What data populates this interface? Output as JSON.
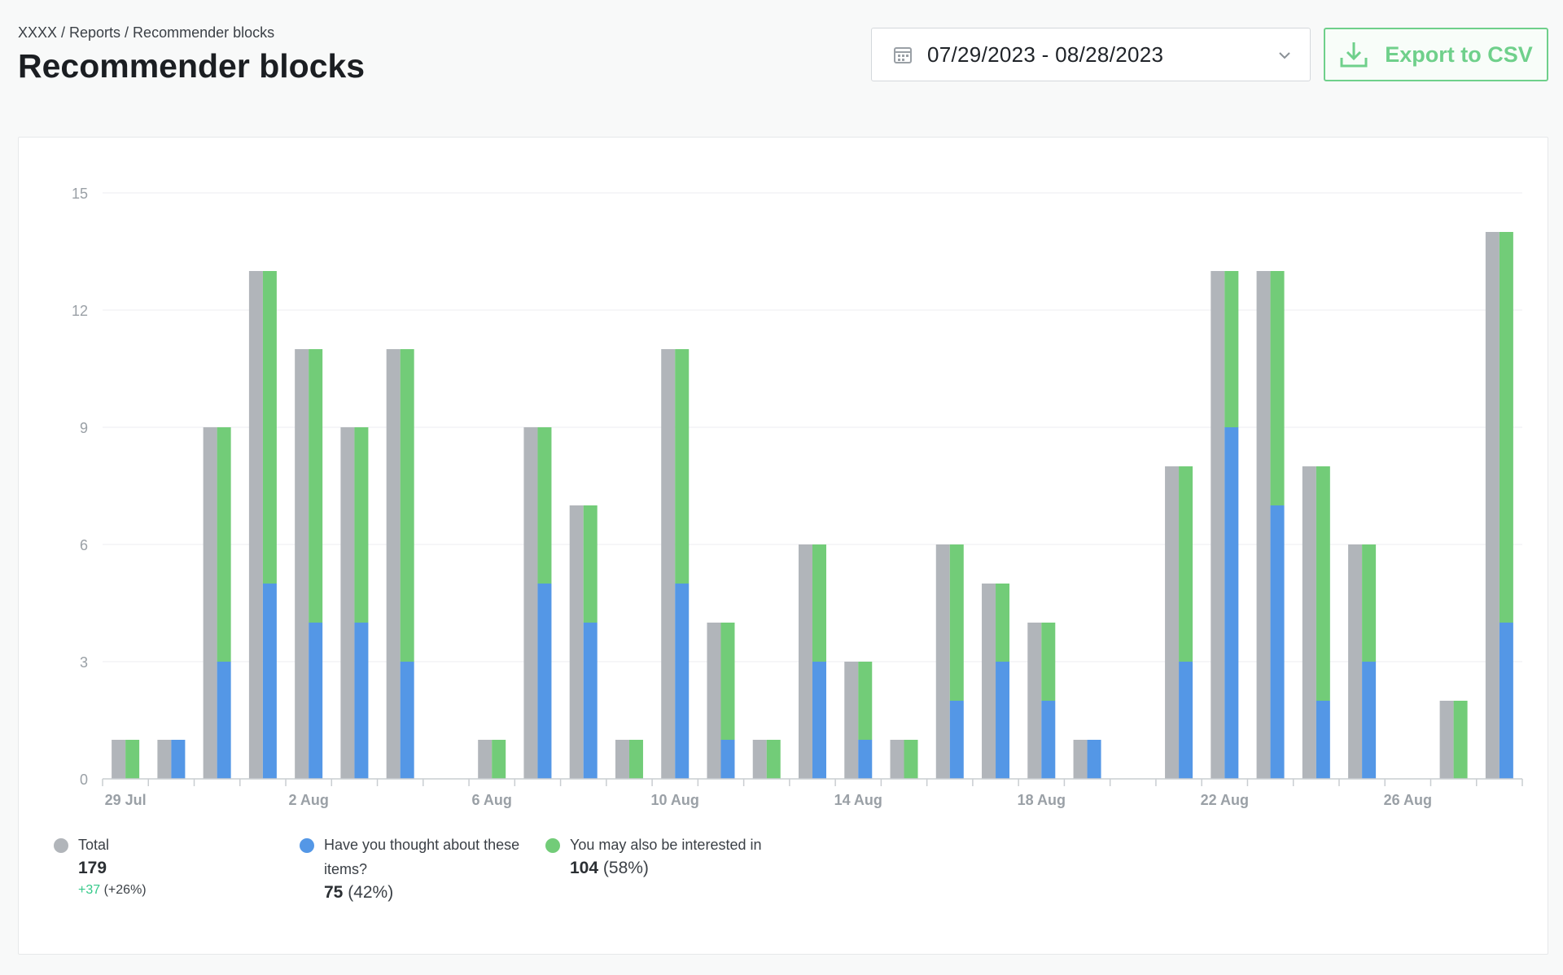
{
  "breadcrumb": "XXXX / Reports / Recommender blocks",
  "page_title": "Recommender blocks",
  "date_range": "07/29/2023 - 08/28/2023",
  "export_label": "Export to CSV",
  "icons": {
    "calendar": "calendar-icon",
    "chevron": "chevron-down-icon",
    "download": "download-icon"
  },
  "colors": {
    "total": "#b1b5ba",
    "have_you_thought": "#5497e6",
    "you_may_also": "#72cc78",
    "accent": "#6fd08b",
    "positive": "#35c98a"
  },
  "legend": {
    "total": {
      "label": "Total",
      "value": "179",
      "change": "+37",
      "change_pct": "(+26%)"
    },
    "have_you_thought": {
      "label_line1": "Have you thought about these",
      "label_line2": "items?",
      "value": "75",
      "pct": "(42%)"
    },
    "you_may_also": {
      "label": "You may also be interested in",
      "value": "104",
      "pct": "(58%)"
    }
  },
  "chart_data": {
    "type": "bar",
    "title": "",
    "xlabel": "",
    "ylabel": "",
    "ylim": [
      0,
      15
    ],
    "yticks": [
      "0",
      "3",
      "6",
      "9",
      "12",
      "15"
    ],
    "grid": true,
    "legend_position": "bottom-left",
    "categories": [
      "29 Jul",
      "30 Jul",
      "31 Jul",
      "1 Aug",
      "2 Aug",
      "3 Aug",
      "4 Aug",
      "5 Aug",
      "6 Aug",
      "7 Aug",
      "8 Aug",
      "9 Aug",
      "10 Aug",
      "11 Aug",
      "12 Aug",
      "13 Aug",
      "14 Aug",
      "15 Aug",
      "16 Aug",
      "17 Aug",
      "18 Aug",
      "19 Aug",
      "20 Aug",
      "21 Aug",
      "22 Aug",
      "23 Aug",
      "24 Aug",
      "25 Aug",
      "26 Aug",
      "27 Aug",
      "28 Aug"
    ],
    "tick_labels": [
      "29 Jul",
      "2 Aug",
      "6 Aug",
      "10 Aug",
      "14 Aug",
      "18 Aug",
      "22 Aug",
      "26 Aug"
    ],
    "series": [
      {
        "name": "Total",
        "values": [
          1,
          1,
          9,
          13,
          11,
          9,
          11,
          0,
          1,
          9,
          7,
          1,
          11,
          4,
          1,
          6,
          3,
          1,
          6,
          5,
          4,
          1,
          0,
          8,
          13,
          13,
          8,
          6,
          0,
          2,
          14
        ]
      },
      {
        "name": "Have you thought about these items?",
        "values": [
          0,
          1,
          3,
          5,
          4,
          4,
          3,
          0,
          0,
          5,
          4,
          0,
          5,
          1,
          0,
          3,
          1,
          0,
          2,
          3,
          2,
          1,
          0,
          3,
          9,
          7,
          2,
          3,
          0,
          0,
          4
        ]
      },
      {
        "name": "You may also be interested in",
        "values": [
          1,
          0,
          6,
          8,
          7,
          5,
          8,
          0,
          1,
          4,
          3,
          1,
          6,
          3,
          1,
          3,
          2,
          1,
          4,
          2,
          2,
          0,
          0,
          5,
          4,
          6,
          6,
          3,
          0,
          2,
          10
        ]
      }
    ]
  }
}
